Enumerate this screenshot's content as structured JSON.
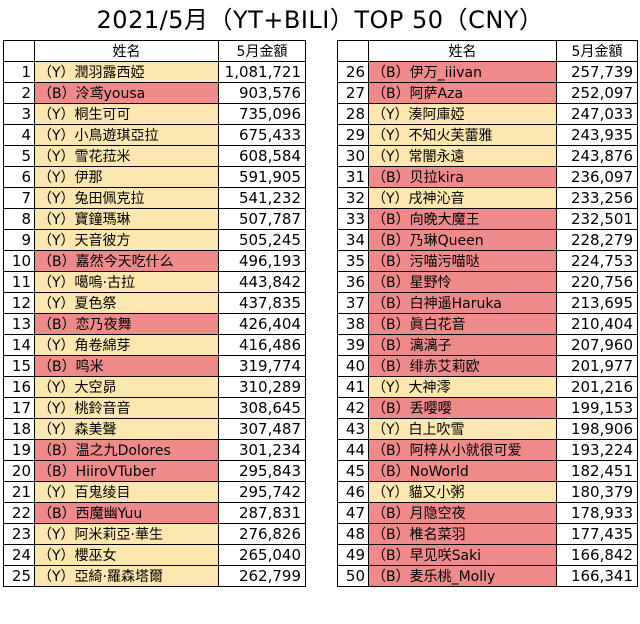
{
  "title": "2021/5月（YT+BILI）TOP 50（CNY）",
  "colors": {
    "Y": "#fde7b0",
    "B": "#ef8a8a"
  },
  "headers": {
    "name": "姓名",
    "amount": "5月金額"
  },
  "left": [
    {
      "rank": "1",
      "tag": "Y",
      "name": "（Y）潤羽露西婭",
      "amount": "1,081,721"
    },
    {
      "rank": "2",
      "tag": "B",
      "name": "（B）泠鸢yousa",
      "amount": "903,576"
    },
    {
      "rank": "3",
      "tag": "Y",
      "name": "（Y）桐生可可",
      "amount": "735,096"
    },
    {
      "rank": "4",
      "tag": "Y",
      "name": "（Y）小鳥遊琪亞拉",
      "amount": "675,433"
    },
    {
      "rank": "5",
      "tag": "Y",
      "name": "（Y）雪花菈米",
      "amount": "608,584"
    },
    {
      "rank": "6",
      "tag": "Y",
      "name": "（Y）伊那",
      "amount": "591,905"
    },
    {
      "rank": "7",
      "tag": "Y",
      "name": "（Y）兔田佩克拉",
      "amount": "541,232"
    },
    {
      "rank": "8",
      "tag": "Y",
      "name": "（Y）寶鐘瑪琳",
      "amount": "507,787"
    },
    {
      "rank": "9",
      "tag": "Y",
      "name": "（Y）天音彼方",
      "amount": "505,245"
    },
    {
      "rank": "10",
      "tag": "B",
      "name": "（B）嘉然今天吃什么",
      "amount": "496,193"
    },
    {
      "rank": "11",
      "tag": "Y",
      "name": "（Y）噶嗚·古拉",
      "amount": "443,842"
    },
    {
      "rank": "12",
      "tag": "Y",
      "name": "（Y）夏色祭",
      "amount": "437,835"
    },
    {
      "rank": "13",
      "tag": "B",
      "name": "（B）恋乃夜舞",
      "amount": "426,404"
    },
    {
      "rank": "14",
      "tag": "Y",
      "name": "（Y）角卷綿芽",
      "amount": "416,486"
    },
    {
      "rank": "15",
      "tag": "B",
      "name": "（B）鸣米",
      "amount": "319,774"
    },
    {
      "rank": "16",
      "tag": "Y",
      "name": "（Y）大空昴",
      "amount": "310,289"
    },
    {
      "rank": "17",
      "tag": "Y",
      "name": "（Y）桃鈴音音",
      "amount": "308,645"
    },
    {
      "rank": "18",
      "tag": "Y",
      "name": "（Y）森美聲",
      "amount": "307,487"
    },
    {
      "rank": "19",
      "tag": "B",
      "name": "（B）温之九Dolores",
      "amount": "301,234"
    },
    {
      "rank": "20",
      "tag": "B",
      "name": "（B）HiiroVTuber",
      "amount": "295,843"
    },
    {
      "rank": "21",
      "tag": "Y",
      "name": "（Y）百鬼绫目",
      "amount": "295,742"
    },
    {
      "rank": "22",
      "tag": "B",
      "name": "（B）西魔幽Yuu",
      "amount": "287,831"
    },
    {
      "rank": "23",
      "tag": "Y",
      "name": "（Y）阿米莉亞·華生",
      "amount": "276,826"
    },
    {
      "rank": "24",
      "tag": "Y",
      "name": "（Y）櫻巫女",
      "amount": "265,040"
    },
    {
      "rank": "25",
      "tag": "Y",
      "name": "（Y）亞綺·羅森塔爾",
      "amount": "262,799"
    }
  ],
  "right": [
    {
      "rank": "26",
      "tag": "B",
      "name": "（B）伊万_iiivan",
      "amount": "257,739"
    },
    {
      "rank": "27",
      "tag": "B",
      "name": "（B）阿萨Aza",
      "amount": "252,097"
    },
    {
      "rank": "28",
      "tag": "Y",
      "name": "（Y）湊阿庫婭",
      "amount": "247,033"
    },
    {
      "rank": "29",
      "tag": "Y",
      "name": "（Y）不知火芙蕾雅",
      "amount": "243,935"
    },
    {
      "rank": "30",
      "tag": "Y",
      "name": "（Y）常闇永遠",
      "amount": "243,876"
    },
    {
      "rank": "31",
      "tag": "B",
      "name": "（B）贝拉kira",
      "amount": "236,097"
    },
    {
      "rank": "32",
      "tag": "Y",
      "name": "（Y）戌神沁音",
      "amount": "233,256"
    },
    {
      "rank": "33",
      "tag": "B",
      "name": "（B）向晚大魔王",
      "amount": "232,501"
    },
    {
      "rank": "34",
      "tag": "B",
      "name": "（B）乃琳Queen",
      "amount": "228,279"
    },
    {
      "rank": "35",
      "tag": "B",
      "name": "（B）污喵污喵哒",
      "amount": "224,753"
    },
    {
      "rank": "36",
      "tag": "B",
      "name": "（B）星野怜",
      "amount": "220,756"
    },
    {
      "rank": "37",
      "tag": "B",
      "name": "（B）白神遥Haruka",
      "amount": "213,695"
    },
    {
      "rank": "38",
      "tag": "B",
      "name": "（B）眞白花音",
      "amount": "210,404"
    },
    {
      "rank": "39",
      "tag": "B",
      "name": "（B）漓漓子",
      "amount": "207,960"
    },
    {
      "rank": "40",
      "tag": "B",
      "name": "（B）绯赤艾莉欧",
      "amount": "201,977"
    },
    {
      "rank": "41",
      "tag": "Y",
      "name": "（Y）大神澪",
      "amount": "201,216"
    },
    {
      "rank": "42",
      "tag": "B",
      "name": "（B）丢嘤嘤",
      "amount": "199,153"
    },
    {
      "rank": "43",
      "tag": "Y",
      "name": "（Y）白上吹雪",
      "amount": "198,906"
    },
    {
      "rank": "44",
      "tag": "B",
      "name": "（B）阿梓从小就很可爱",
      "amount": "193,224"
    },
    {
      "rank": "45",
      "tag": "B",
      "name": "（B）NoWorld",
      "amount": "182,451"
    },
    {
      "rank": "46",
      "tag": "Y",
      "name": "（Y）貓又小粥",
      "amount": "180,379"
    },
    {
      "rank": "47",
      "tag": "B",
      "name": "（B）月隐空夜",
      "amount": "178,933"
    },
    {
      "rank": "48",
      "tag": "B",
      "name": "（B）椎名菜羽",
      "amount": "177,435"
    },
    {
      "rank": "49",
      "tag": "B",
      "name": "（B）早见咲Saki",
      "amount": "166,842"
    },
    {
      "rank": "50",
      "tag": "B",
      "name": "（B）麦乐桃_Molly",
      "amount": "166,341"
    }
  ]
}
